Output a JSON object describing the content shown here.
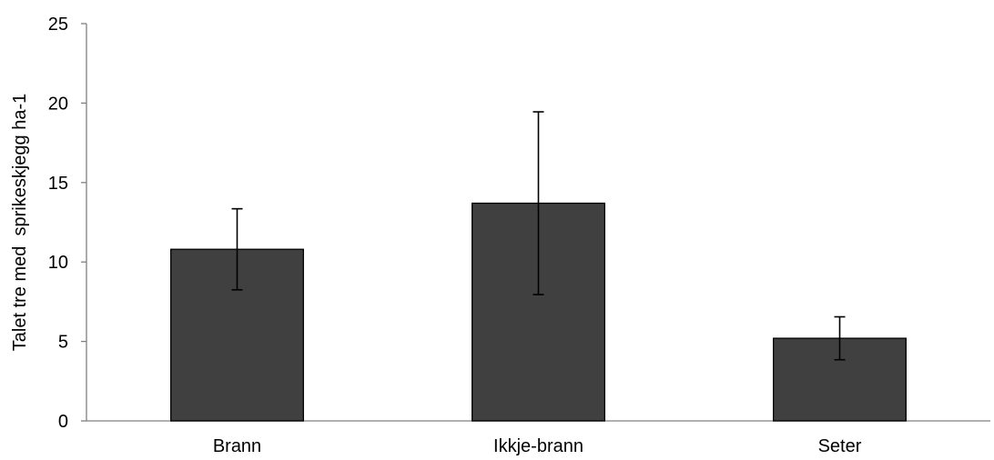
{
  "chart_data": {
    "type": "bar",
    "categories": [
      "Brann",
      "Ikkje-brann",
      "Seter"
    ],
    "values": [
      10.8,
      13.7,
      5.2
    ],
    "error": {
      "lower": [
        8.25,
        7.95,
        3.85
      ],
      "upper": [
        13.35,
        19.45,
        6.55
      ]
    },
    "ylabel": "Talet tre med  sprikeskjegg ha-1",
    "xlabel": "",
    "ylim": [
      0,
      25
    ],
    "yticks": [
      "0",
      "5",
      "10",
      "15",
      "20",
      "25"
    ],
    "grid": false,
    "legend": "none",
    "colors": {
      "bar_fill": "#404040",
      "bar_edge": "#000000",
      "axis": "#808080",
      "text": "#000000"
    }
  }
}
